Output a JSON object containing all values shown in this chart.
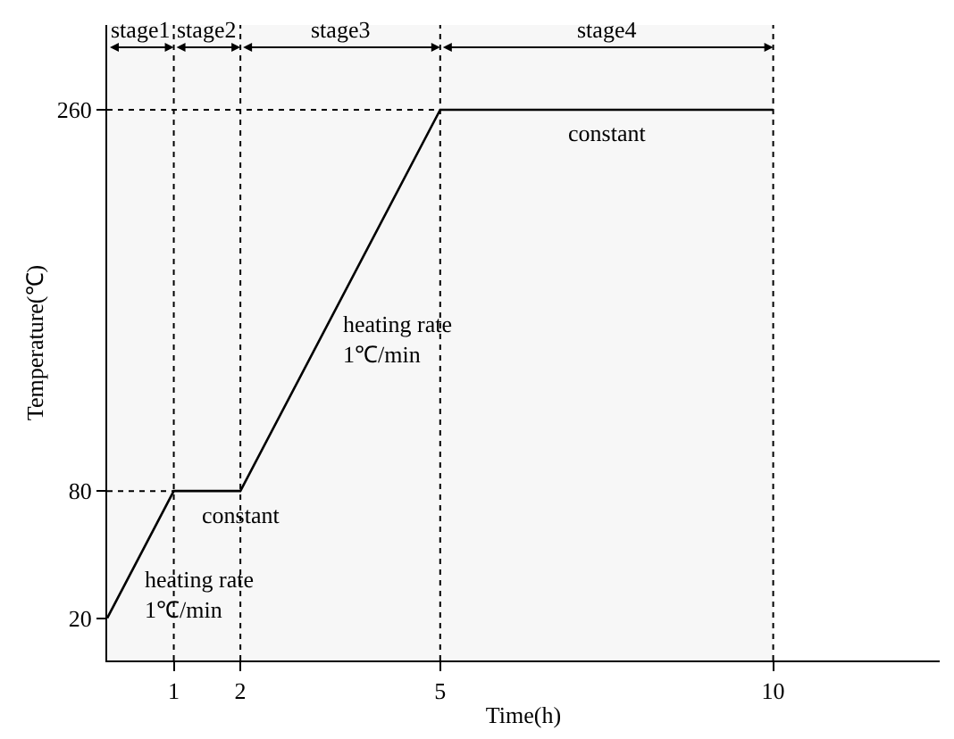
{
  "chart_data": {
    "type": "line",
    "xlabel": "Time(h)",
    "ylabel": "Temperature(℃)",
    "x": [
      0,
      1,
      2,
      5,
      10
    ],
    "values": [
      20,
      80,
      80,
      260,
      260
    ],
    "color": "#000000",
    "xlim": [
      0,
      12.5
    ],
    "ylim": [
      0,
      300
    ],
    "xticks": [
      1,
      2,
      5,
      10
    ],
    "yticks": [
      20,
      80,
      260
    ],
    "grid": false,
    "marker": "none",
    "line_style": "solid",
    "ref_lines": [
      {
        "axis": "x",
        "value": 1,
        "line_style": "dotted"
      },
      {
        "axis": "x",
        "value": 2,
        "line_style": "dotted"
      },
      {
        "axis": "x",
        "value": 5,
        "line_style": "dotted"
      },
      {
        "axis": "x",
        "value": 10,
        "line_style": "dotted"
      },
      {
        "axis": "y",
        "value": 80,
        "line_style": "dotted"
      },
      {
        "axis": "y",
        "value": 260,
        "line_style": "dotted"
      }
    ],
    "bands": [
      {
        "axis": "x",
        "from": 0,
        "to": 1,
        "label": "stage1"
      },
      {
        "axis": "x",
        "from": 1,
        "to": 2,
        "label": "stage2"
      },
      {
        "axis": "x",
        "from": 2,
        "to": 5,
        "label": "stage3"
      },
      {
        "axis": "x",
        "from": 5,
        "to": 10,
        "label": "stage4"
      }
    ],
    "annotations": [
      {
        "text": "constant",
        "x": 7.5,
        "y": 260
      },
      {
        "text": "constant",
        "x": 2,
        "y": 80
      },
      {
        "text": "heating rate\n1℃/min",
        "x": 3.5,
        "y": 170
      },
      {
        "text": "heating rate\n1℃/min",
        "x": 0.5,
        "y": 50
      }
    ]
  }
}
